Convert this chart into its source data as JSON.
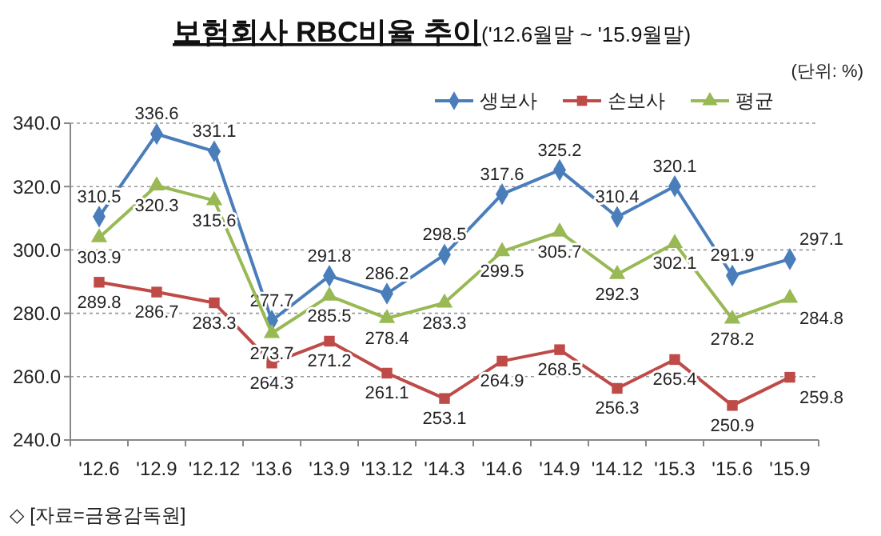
{
  "chart_data": {
    "type": "line",
    "title": "보험회사 RBC비율 추이",
    "subtitle": "('12.6월말 ~ '15.9월말)",
    "annotations": [
      "(단위: %)",
      "◇ [자료=금융감독원]"
    ],
    "categories": [
      "'12.6",
      "'12.9",
      "'12.12",
      "'13.6",
      "'13.9",
      "'13.12",
      "'14.3",
      "'14.6",
      "'14.9",
      "'14.12",
      "'15.3",
      "'15.6",
      "'15.9"
    ],
    "series": [
      {
        "name": "생보사",
        "color": "#4a7ebb",
        "marker": "diamond",
        "values": [
          310.5,
          336.6,
          331.1,
          277.7,
          291.8,
          286.2,
          298.5,
          317.6,
          325.2,
          310.4,
          320.1,
          291.9,
          297.1
        ]
      },
      {
        "name": "손보사",
        "color": "#be4b48",
        "marker": "square",
        "values": [
          289.8,
          286.7,
          283.3,
          264.3,
          271.2,
          261.1,
          253.1,
          264.9,
          268.5,
          256.3,
          265.4,
          250.9,
          259.8
        ]
      },
      {
        "name": "평균",
        "color": "#98b954",
        "marker": "triangle",
        "values": [
          303.9,
          320.3,
          315.6,
          273.7,
          285.5,
          278.4,
          283.3,
          299.5,
          305.7,
          292.3,
          302.1,
          278.2,
          284.8
        ]
      }
    ],
    "ylim": [
      240,
      340
    ],
    "yticks": [
      {
        "value": 240,
        "label": "240.0"
      },
      {
        "value": 260,
        "label": "260.0"
      },
      {
        "value": 280,
        "label": "280.0"
      },
      {
        "value": 300,
        "label": "300.0"
      },
      {
        "value": 320,
        "label": "320.0"
      },
      {
        "value": 340,
        "label": "340.0"
      }
    ],
    "grid": "y",
    "legend": "top right",
    "data_labels": true,
    "line_style": "solid"
  }
}
